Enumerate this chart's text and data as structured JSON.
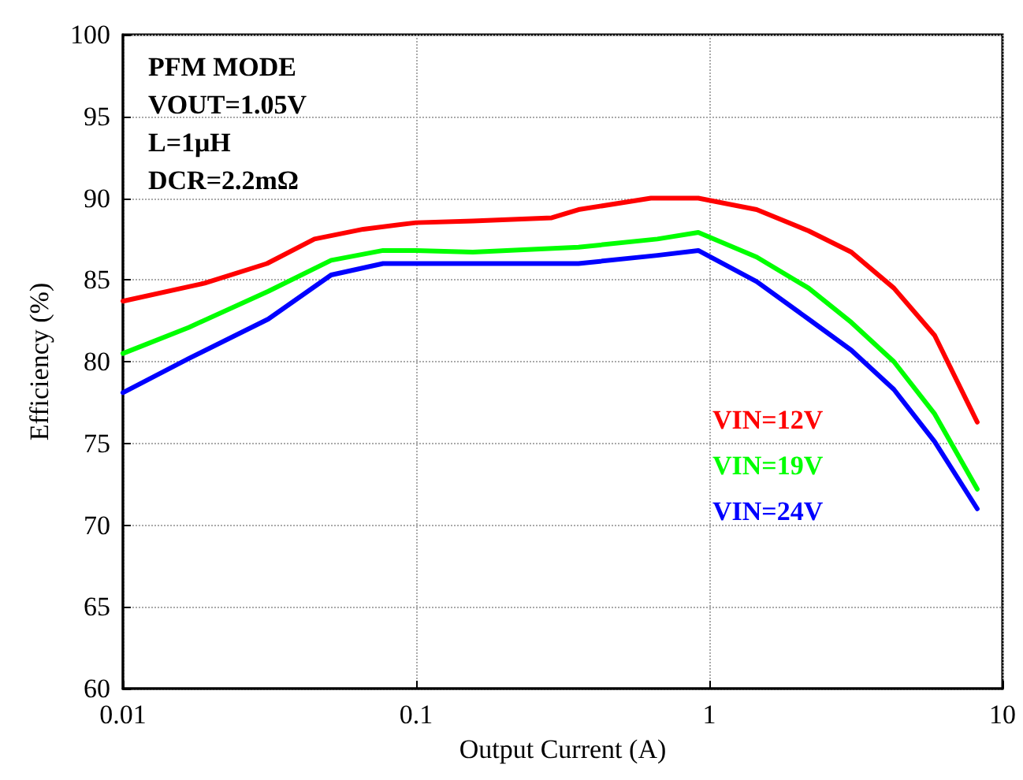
{
  "chart_data": {
    "type": "line",
    "xlabel": "Output Current (A)",
    "ylabel": "Efficiency (%)",
    "annotations": [
      "PFM MODE",
      "VOUT=1.05V",
      "L=1μH",
      "DCR=2.2mΩ"
    ],
    "log": "x",
    "xlim": [
      0.01,
      10
    ],
    "xticks": [
      0.01,
      0.1,
      1,
      10
    ],
    "ylim": [
      60,
      100
    ],
    "yticks": [
      60,
      65,
      70,
      75,
      80,
      85,
      90,
      95,
      100
    ],
    "grid": true,
    "legend": false,
    "marker": "none",
    "line_style": "solid",
    "series": [
      {
        "name": "VIN=12V",
        "color": "#ff0000",
        "x": [
          0.01,
          0.019,
          0.031,
          0.045,
          0.066,
          0.1,
          0.156,
          0.29,
          0.358,
          0.632,
          0.917,
          1.45,
          2.18,
          3.05,
          4.26,
          5.87,
          8.2
        ],
        "values": [
          83.7,
          84.8,
          86.0,
          87.5,
          88.1,
          88.5,
          88.6,
          88.8,
          89.3,
          90.0,
          90.0,
          89.3,
          88.0,
          86.7,
          84.5,
          81.6,
          76.3
        ]
      },
      {
        "name": "VIN=19V",
        "color": "#00ff00",
        "x": [
          0.01,
          0.0168,
          0.0313,
          0.0513,
          0.0771,
          0.1,
          0.156,
          0.358,
          0.665,
          0.917,
          1.45,
          2.18,
          3.05,
          4.26,
          5.87,
          8.2
        ],
        "values": [
          80.5,
          82.1,
          84.3,
          86.2,
          86.8,
          86.8,
          86.7,
          87.0,
          87.5,
          87.9,
          86.4,
          84.5,
          82.4,
          80.0,
          76.8,
          72.2
        ]
      },
      {
        "name": "VIN=24V",
        "color": "#0000ff",
        "x": [
          0.01,
          0.0168,
          0.0313,
          0.0513,
          0.0771,
          0.1,
          0.156,
          0.358,
          0.665,
          0.917,
          1.45,
          2.18,
          3.05,
          4.26,
          5.87,
          8.2
        ],
        "values": [
          78.1,
          80.2,
          82.6,
          85.3,
          86.0,
          86.0,
          86.0,
          86.0,
          86.5,
          86.8,
          84.9,
          82.6,
          80.7,
          78.3,
          75.1,
          71.0
        ]
      }
    ]
  }
}
